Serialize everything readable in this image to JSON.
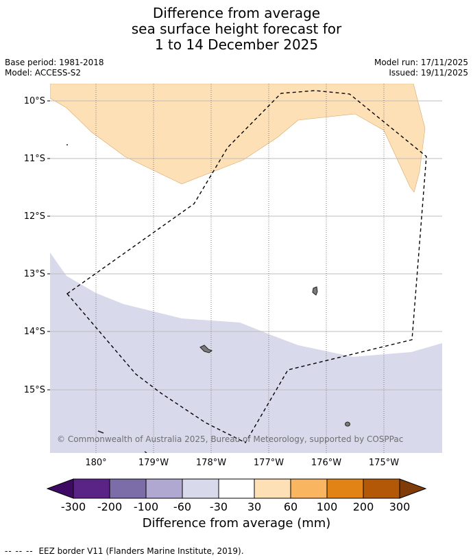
{
  "header": {
    "title_lines": [
      "Difference from average",
      "sea surface height forecast for",
      "1 to 14 December 2025"
    ],
    "base_period": "Base period: 1981-2018",
    "model": "Model: ACCESS-S2",
    "model_run": "Model run: 17/11/2025",
    "issued": "Issued: 19/11/2025"
  },
  "map": {
    "lat_labels": [
      "10°S",
      "11°S",
      "12°S",
      "13°S",
      "14°S",
      "15°S"
    ],
    "lon_labels": [
      "180°",
      "179°W",
      "178°W",
      "177°W",
      "176°W",
      "175°W"
    ],
    "credit": "© Commonwealth of Australia 2025, Bureau of Meteorology, supported by COSPPac",
    "anomaly_regions": [
      {
        "name": "positive-anomaly",
        "bin": "30 to 60",
        "color": "#fde0b6"
      },
      {
        "name": "negative-anomaly",
        "bin": "-60 to -30",
        "color": "#d8d9ea"
      }
    ]
  },
  "colorbar": {
    "title": "Difference from average (mm)",
    "tick_labels": [
      "-300",
      "-200",
      "-100",
      "-60",
      "-30",
      "30",
      "60",
      "100",
      "200",
      "300"
    ],
    "colors": [
      "#3f0a64",
      "#5a2487",
      "#7c6da9",
      "#b0a8d0",
      "#d8d9ea",
      "#ffffff",
      "#fde0b6",
      "#f9b55f",
      "#e28315",
      "#b35806",
      "#7f3b08"
    ]
  },
  "footer": {
    "legend_symbol": "-- -- --",
    "legend_text": "EEZ border V11 (Flanders Marine Institute, 2019)."
  }
}
